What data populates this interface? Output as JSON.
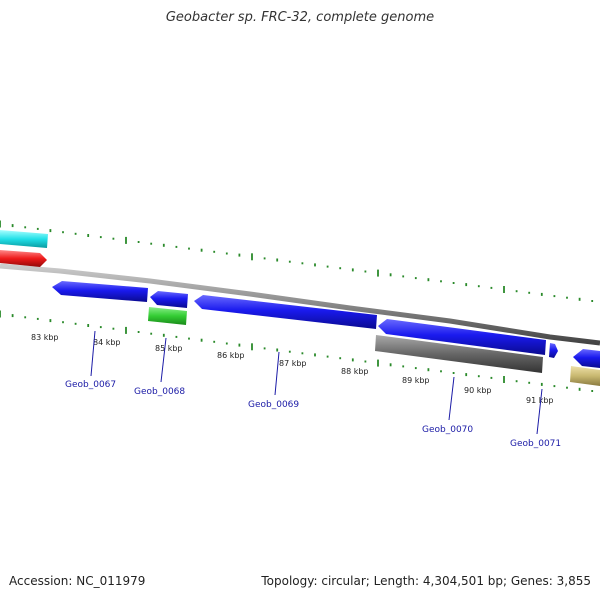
{
  "title": "Geobacter sp. FRC-32, complete genome",
  "footer": {
    "accession": "Accession: NC_011979",
    "topology": "Topology: circular; Length: 4,304,501 bp; Genes: 3,855"
  },
  "colors": {
    "forward_cds": "#1a1aee",
    "trna": "#33cc33",
    "reverse_other": "#666666",
    "cyan_feature": "#22e0e8",
    "red_feature": "#ee1a1a",
    "tan_feature": "#c8b870",
    "gc_tick": "#2a8a2a",
    "backbone": "#888888",
    "label": "#1a1aa6"
  },
  "kbp_labels": [
    "83 kbp",
    "84 kbp",
    "85 kbp",
    "86 kbp",
    "87 kbp",
    "88 kbp",
    "89 kbp",
    "90 kbp",
    "91 kbp"
  ],
  "gene_labels": [
    "Geob_0067",
    "Geob_0068",
    "Geob_0069",
    "Geob_0070",
    "Geob_0071"
  ]
}
